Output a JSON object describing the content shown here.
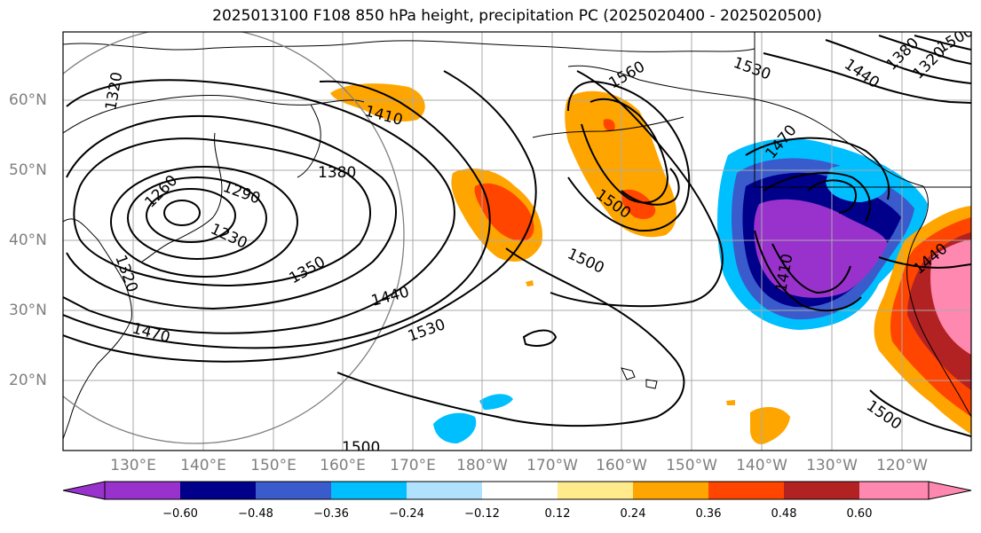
{
  "title": "2025013100 F108 850 hPa height, precipitation PC (2025020400 - 2025020500)",
  "map": {
    "lat_labels": [
      "60°N",
      "50°N",
      "40°N",
      "30°N",
      "20°N"
    ],
    "lon_labels": [
      "130°E",
      "140°E",
      "150°E",
      "160°E",
      "170°E",
      "180°W",
      "170°W",
      "160°W",
      "150°W",
      "140°W",
      "130°W",
      "120°W"
    ],
    "contour_labels": [
      "1320",
      "1260",
      "1290",
      "1230",
      "1320",
      "1380",
      "1350",
      "1410",
      "1440",
      "1470",
      "1530",
      "1500",
      "1560",
      "1530",
      "1500",
      "1500",
      "1440",
      "1470",
      "1410",
      "1440",
      "1500",
      "1500",
      "1380",
      "1320"
    ],
    "colors": {
      "land_outline": "#000000",
      "grid": "#aaaaaa",
      "contour": "#000000",
      "circle": "#808080"
    }
  },
  "colorbar": {
    "ticks": [
      "−0.60",
      "−0.48",
      "−0.36",
      "−0.24",
      "−0.12",
      "0.12",
      "0.24",
      "0.36",
      "0.48",
      "0.60"
    ],
    "colors": [
      "#9932cc",
      "#00008b",
      "#3a5bcc",
      "#00bfff",
      "#b0e2ff",
      "#ffffff",
      "#ffea8c",
      "#ffa500",
      "#ff4500",
      "#b22222",
      "#ff88b0"
    ]
  }
}
